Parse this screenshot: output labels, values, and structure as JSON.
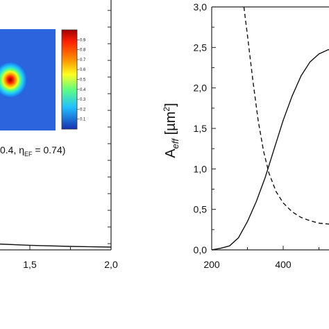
{
  "chart_data": [
    {
      "type": "line",
      "title": "",
      "xlabel": "",
      "ylabel": "",
      "xlim": [
        1.0,
        2.0
      ],
      "x_ticks": [
        1.5,
        2.0
      ],
      "x_tick_labels": [
        "1,5",
        "2,0"
      ],
      "series": [
        {
          "x": [
            1.0,
            1.25,
            1.5,
            1.75,
            2.0
          ],
          "y": [
            0.12,
            0.09,
            0.066,
            0.05,
            0.04
          ]
        }
      ],
      "annotation": {
        "prefix": "0.4, η",
        "subscript": "EF",
        "suffix": " = 0.74)"
      },
      "inset": {
        "type": "heatmap",
        "colorbar_ticks": [
          0.9,
          0.8,
          0.7,
          0.6,
          0.5,
          0.4,
          0.3,
          0.2,
          0.1
        ],
        "colorbar_labels": [
          "0.9",
          "0.8",
          "0.7",
          "0.6",
          "0.5",
          "0.4",
          "0.3",
          "0.2",
          "0.1"
        ]
      }
    },
    {
      "type": "line",
      "title": "",
      "xlabel": "",
      "ylabel": {
        "prefix": "A",
        "subscript": "eff",
        "unit_open": " [µm",
        "unit_sup": "2",
        "unit_close": "]"
      },
      "xlim": [
        200,
        560
      ],
      "ylim": [
        0.0,
        3.0
      ],
      "x_ticks": [
        200,
        400
      ],
      "x_tick_labels": [
        "200",
        "400"
      ],
      "y_ticks": [
        0.0,
        0.5,
        1.0,
        1.5,
        2.0,
        2.5,
        3.0
      ],
      "y_tick_labels": [
        "0,0",
        "0,5",
        "1,0",
        "1,5",
        "2,0",
        "2,5",
        "3,0"
      ],
      "series": [
        {
          "style": "solid",
          "x": [
            200,
            225,
            250,
            275,
            300,
            325,
            350,
            375,
            400,
            425,
            450,
            475,
            500,
            525,
            550
          ],
          "y": [
            0.0,
            0.02,
            0.05,
            0.15,
            0.35,
            0.6,
            0.9,
            1.25,
            1.6,
            1.9,
            2.15,
            2.32,
            2.42,
            2.47,
            2.49
          ]
        },
        {
          "style": "dashed",
          "x": [
            290,
            300,
            315,
            330,
            345,
            360,
            380,
            400,
            425,
            450,
            475,
            500,
            525,
            550
          ],
          "y": [
            3.0,
            2.65,
            2.1,
            1.6,
            1.22,
            0.95,
            0.72,
            0.58,
            0.47,
            0.4,
            0.36,
            0.33,
            0.32,
            0.31
          ]
        }
      ]
    }
  ]
}
